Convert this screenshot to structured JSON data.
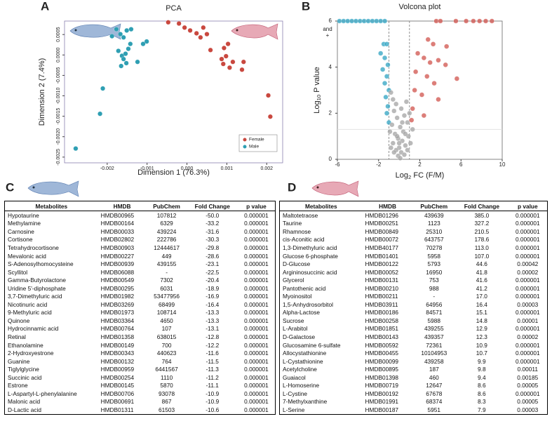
{
  "chart_data": [
    {
      "type": "scatter",
      "panel": "A",
      "title": "PCA",
      "x_label": "Dimension 1 (76.3%)",
      "y_label": "Dimension 2 (7.4%)",
      "xlim": [
        -0.00307,
        0.0024
      ],
      "ylim": [
        -0.00264,
        0.00083
      ],
      "xticks": [
        -0.002,
        -0.001,
        {
          "value": 0,
          "label": "0.000"
        },
        0.001,
        0.002
      ],
      "yticks": [
        0.0005,
        {
          "value": 0,
          "label": "0.0000"
        },
        -0.0005,
        {
          "value": -0.001,
          "label": "-0.0010"
        },
        -0.0015,
        {
          "value": -0.002,
          "label": "-0.0020"
        },
        -0.0025
      ],
      "grid": false,
      "legend": "lower right",
      "series": [
        {
          "name": "Female",
          "color": "#c9483f",
          "x": [
            -0.00047,
            -0.0002,
            -6e-05,
            8e-05,
            0.00024,
            0.00034,
            0.00041,
            0.0005,
            0.00059,
            0.00087,
            0.00091,
            0.00098,
            0.00107,
            0.00115,
            0.00103,
            0.00093,
            0.00138,
            0.00142,
            0.00204,
            0.00209
          ],
          "values": [
            0.0008,
            0.00077,
            0.00067,
            0.0006,
            0.00053,
            0.00043,
            0.00067,
            0.00051,
            0.00012,
            -0.0001,
            -0.00022,
            -3e-05,
            -0.00031,
            -0.00017,
            0.00027,
            0.00017,
            -0.00036,
            -0.00017,
            -0.00099,
            -0.00151
          ]
        },
        {
          "name": "Male",
          "color": "#2f9fb3",
          "x": [
            -0.00279,
            -0.00218,
            -0.00211,
            -0.00188,
            -0.00177,
            -0.00167,
            -0.00159,
            -0.00151,
            -0.0014,
            -0.00172,
            -0.00163,
            -0.00159,
            -0.00154,
            -0.00147,
            -0.00142,
            -0.00152,
            -0.00165,
            -0.00101,
            -0.0011,
            -0.00124
          ],
          "values": [
            -0.00229,
            -0.00144,
            -0.00082,
            0.00046,
            0.00063,
            0.00051,
            0.00043,
            0.0006,
            0.00063,
            0.0001,
            -2e-05,
            -0.0001,
            3e-05,
            0.00015,
            0.00027,
            -0.0002,
            -0.00027,
            0.00033,
            0.00027,
            -0.00017
          ]
        }
      ]
    },
    {
      "type": "scatter",
      "panel": "B",
      "title": "Volcona plot",
      "x_label": {
        "base": "Log",
        "sub": "2",
        "rest": " FC (F/M)"
      },
      "y_label": {
        "base": "Log",
        "sub": "10",
        "rest": " P value"
      },
      "annotation": [
        "and",
        "+"
      ],
      "xlim": [
        -6,
        10
      ],
      "ylim": [
        0,
        6
      ],
      "xticks": [
        -6,
        -2,
        2,
        6,
        10
      ],
      "yticks": [
        0,
        2,
        4,
        6
      ],
      "grid": false,
      "threshold_lines": {
        "x": [
          -1,
          1
        ],
        "y": 1.3
      },
      "series": [
        {
          "color": "#2fa3c2",
          "x": [
            -5.8,
            -5.4,
            -5,
            -4.6,
            -4.2,
            -3.8,
            -3.4,
            -3,
            -2.6,
            -2.2,
            -1.8,
            -1.4,
            -1.5,
            -1.2,
            -1.8,
            -1.4,
            -1.1,
            -1.6,
            -1.2,
            -1.4,
            -1,
            -1.3,
            -1.1,
            -1.2,
            -1
          ],
          "values": [
            6,
            6,
            6,
            6,
            6,
            6,
            6,
            6,
            6,
            6,
            6,
            6,
            5,
            5,
            4.6,
            4.4,
            4.1,
            3.9,
            3.6,
            3.3,
            3,
            2.7,
            2.3,
            2,
            1.6
          ]
        },
        {
          "color": "#d0534c",
          "x": [
            5.5,
            6.5,
            7.2,
            7.8,
            8.4,
            9,
            3.6,
            4,
            2.8,
            3.3,
            4.6,
            1.8,
            2.4,
            3,
            3.8,
            4.5,
            5.6,
            1.6,
            2.7,
            3.4,
            1.5,
            2.2,
            3.8,
            1.3,
            2.4,
            1.2
          ],
          "values": [
            6,
            6,
            6,
            6,
            6,
            6,
            6,
            6,
            5.2,
            5,
            4.9,
            4.6,
            4.4,
            4.2,
            4.3,
            4.1,
            3.5,
            3.8,
            3.6,
            3.3,
            3,
            2.8,
            2.6,
            2.2,
            1.9,
            1.7
          ]
        },
        {
          "color": "#a3a3a3",
          "x": [
            -0.8,
            -0.6,
            -0.3,
            0.2,
            -0.5,
            0.5,
            -0.2,
            0.8,
            -0.7,
            0.1,
            0.4,
            -0.4,
            0.9,
            -0.1,
            0.3,
            -0.6,
            0.6,
            0,
            -0.3,
            0.2,
            0.5,
            -0.1,
            0.1,
            -0.5,
            0.8,
            1.1,
            1.3,
            -0.9,
            0.7,
            1,
            0.3,
            -0.2,
            0.6,
            0,
            -0.8
          ],
          "values": [
            2.9,
            2.6,
            2.4,
            2.2,
            2.1,
            1.9,
            1.8,
            1.6,
            1.5,
            1.4,
            1.2,
            1.1,
            1,
            0.9,
            0.8,
            0.7,
            0.6,
            0.5,
            0.4,
            0.3,
            0.2,
            0.15,
            0.05,
            0.3,
            0.4,
            0.7,
            1.3,
            1.2,
            2.5,
            2,
            1.6,
            1,
            1.1,
            0.7,
            0.5
          ]
        }
      ]
    }
  ],
  "tables": [
    {
      "panel": "C",
      "columns": [
        "Metabolites",
        "HMDB",
        "PubChem",
        "Fold Change",
        "p value"
      ],
      "rows": [
        [
          "Hypotaurine",
          "HMDB00965",
          "107812",
          "-50.0",
          "0.000001"
        ],
        [
          "Methylamine",
          "HMDB00164",
          "6329",
          "-33.2",
          "0.000001"
        ],
        [
          "Carnosine",
          "HMDB00033",
          "439224",
          "-31.6",
          "0.000001"
        ],
        [
          "Cortisone",
          "HMDB02802",
          "222786",
          "-30.3",
          "0.000001"
        ],
        [
          "Tetrahydrocortisone",
          "HMDB00903",
          "12444617",
          "-29.8",
          "0.000001"
        ],
        [
          "Mevalonic acid",
          "HMDB00227",
          "449",
          "-28.6",
          "0.000001"
        ],
        [
          "S-Adenosylhomocysteine",
          "HMDB00939",
          "439155",
          "-23.1",
          "0.000001"
        ],
        [
          "Scyllitol",
          "HMDB06088",
          "-",
          "-22.5",
          "0.000001"
        ],
        [
          "Gamma-Butyrolactone",
          "HMDB00549",
          "7302",
          "-20.4",
          "0.000001"
        ],
        [
          "Uridine 5'-diphosphate",
          "HMDB00295",
          "6031",
          "-18.9",
          "0.000001"
        ],
        [
          "3,7-Dimethyluric acid",
          "HMDB01982",
          "53477956",
          "-16.9",
          "0.000001"
        ],
        [
          "Nicotinuric acid",
          "HMDB03269",
          "68499",
          "-16.4",
          "0.000001"
        ],
        [
          "9-Methyluric acid",
          "HMDB01973",
          "108714",
          "-13.3",
          "0.000001"
        ],
        [
          "Quinone",
          "HMDB03364",
          "4650",
          "-13.3",
          "0.000001"
        ],
        [
          "Hydrocinnamic acid",
          "HMDB00764",
          "107",
          "-13.1",
          "0.000001"
        ],
        [
          "Retinal",
          "HMDB01358",
          "638015",
          "-12.8",
          "0.000001"
        ],
        [
          "Ethanolamine",
          "HMDB00149",
          "700",
          "-12.2",
          "0.000001"
        ],
        [
          "2-Hydroxyestrone",
          "HMDB00343",
          "440623",
          "-11.6",
          "0.000001"
        ],
        [
          "Guanine",
          "HMDB00132",
          "764",
          "-11.5",
          "0.000001"
        ],
        [
          "Tiglylglycine",
          "HMDB00959",
          "6441567",
          "-11.3",
          "0.000001"
        ],
        [
          "Succinic acid",
          "HMDB00254",
          "1110",
          "-11.2",
          "0.000001"
        ],
        [
          "Estrone",
          "HMDB00145",
          "5870",
          "-11.1",
          "0.000001"
        ],
        [
          "L-Aspartyl-L-phenylalanine",
          "HMDB00706",
          "93078",
          "-10.9",
          "0.000001"
        ],
        [
          "Malonic acid",
          "HMDB00691",
          "867",
          "-10.9",
          "0.000001"
        ],
        [
          "D-Lactic acid",
          "HMDB01311",
          "61503",
          "-10.6",
          "0.000001"
        ]
      ]
    },
    {
      "panel": "D",
      "columns": [
        "Metabolites",
        "HMDB",
        "PubChem",
        "Fold Change",
        "p value"
      ],
      "rows": [
        [
          "Maltotetraose",
          "HMDB01296",
          "439639",
          "385.0",
          "0.000001"
        ],
        [
          "Taurine",
          "HMDB00251",
          "1123",
          "327.2",
          "0.000001"
        ],
        [
          "Rhamnose",
          "HMDB00849",
          "25310",
          "210.5",
          "0.000001"
        ],
        [
          "cis-Aconitic acid",
          "HMDB00072",
          "643757",
          "178.6",
          "0.000001"
        ],
        [
          "1,3-Dimethyluric acid",
          "HMDB40177",
          "70278",
          "113.0",
          "0.000001"
        ],
        [
          "Glucose 6-phosphate",
          "HMDB01401",
          "5958",
          "107.0",
          "0.000001"
        ],
        [
          "D-Glucose",
          "HMDB00122",
          "5793",
          "44.6",
          "0.00042"
        ],
        [
          "Argininosuccinic acid",
          "HMDB00052",
          "16950",
          "41.8",
          "0.00002"
        ],
        [
          "Glycerol",
          "HMDB00131",
          "753",
          "41.6",
          "0.000001"
        ],
        [
          "Pantothenic acid",
          "HMDB00210",
          "988",
          "41.2",
          "0.000001"
        ],
        [
          "Myoinositol",
          "HMDB00211",
          "-",
          "17.0",
          "0.000001"
        ],
        [
          "1,5-Anhydrosorbitol",
          "HMDB03911",
          "64956",
          "16.4",
          "0.00003"
        ],
        [
          "Alpha-Lactose",
          "HMDB00186",
          "84571",
          "15.1",
          "0.000001"
        ],
        [
          "Sucrose",
          "HMDB00258",
          "5988",
          "14.8",
          "0.00001"
        ],
        [
          "L-Arabitol",
          "HMDB01851",
          "439255",
          "12.9",
          "0.000001"
        ],
        [
          "D-Galactose",
          "HMDB00143",
          "439357",
          "12.3",
          "0.00002"
        ],
        [
          "Glucosamine 6-sulfate",
          "HMDB00592",
          "72361",
          "10.9",
          "0.000001"
        ],
        [
          "Allocystathionine",
          "HMDB00455",
          "10104953",
          "10.7",
          "0.000001"
        ],
        [
          "L-Cystathionine",
          "HMDB00099",
          "439258",
          "9.9",
          "0.000001"
        ],
        [
          "Acetylcholine",
          "HMDB00895",
          "187",
          "9.8",
          "0.00011"
        ],
        [
          "Guaiacol",
          "HMDB01398",
          "460",
          "9.4",
          "0.00185"
        ],
        [
          "L-Homoserine",
          "HMDB00719",
          "12647",
          "8.6",
          "0.00005"
        ],
        [
          "L-Cystine",
          "HMDB00192",
          "67678",
          "8.6",
          "0.000001"
        ],
        [
          "7-Methylxanthine",
          "HMDB01991",
          "68374",
          "8.3",
          "0.00005"
        ],
        [
          "L-Serine",
          "HMDB00187",
          "5951",
          "7.9",
          "0.00003"
        ]
      ]
    }
  ]
}
